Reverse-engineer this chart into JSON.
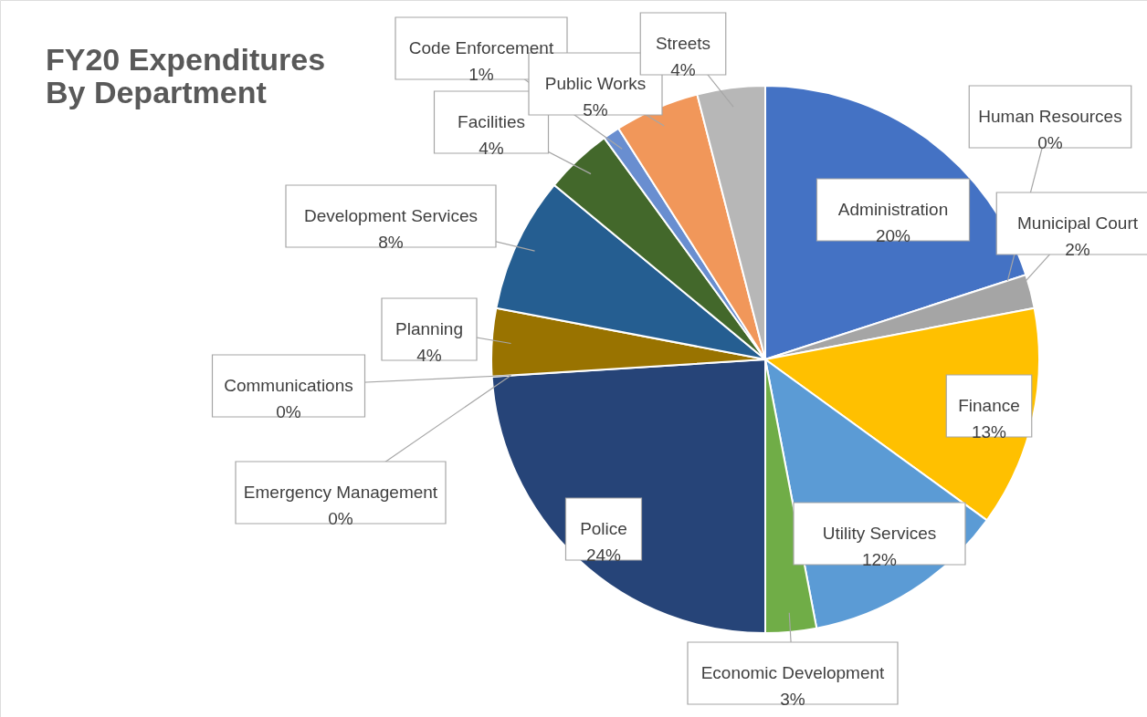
{
  "chart_data": {
    "type": "pie",
    "title": [
      "FY20 Expenditures",
      "By Department"
    ],
    "categories": [
      "Administration",
      "Human Resources",
      "Municipal Court",
      "Finance",
      "Utility Services",
      "Economic Development",
      "Police",
      "Emergency Management",
      "Communications",
      "Planning",
      "Development Services",
      "Facilities",
      "Code Enforcement",
      "Public Works",
      "Streets"
    ],
    "values": [
      20,
      0,
      2,
      13,
      12,
      3,
      24,
      0,
      0,
      4,
      8,
      4,
      1,
      5,
      4
    ],
    "value_labels": [
      "20%",
      "0%",
      "2%",
      "13%",
      "12%",
      "3%",
      "24%",
      "0%",
      "0%",
      "4%",
      "8%",
      "4%",
      "1%",
      "5%",
      "4%"
    ],
    "colors": [
      "#4472c4",
      "#ed7d31",
      "#a5a5a5",
      "#ffc000",
      "#5b9bd5",
      "#70ad47",
      "#264478",
      "#9e480e",
      "#636363",
      "#997300",
      "#255e91",
      "#43682b",
      "#698ed0",
      "#f1975a",
      "#b7b7b7"
    ]
  }
}
